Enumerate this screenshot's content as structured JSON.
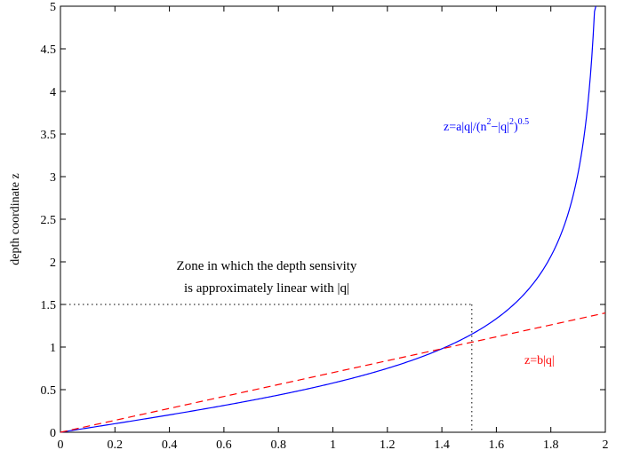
{
  "chart_data": {
    "type": "line",
    "ylabel": "depth coordinate z",
    "xlabel": "",
    "xlim": [
      0,
      2
    ],
    "ylim": [
      0,
      5
    ],
    "x_ticks": [
      "0",
      "0.2",
      "0.4",
      "0.6",
      "0.8",
      "1",
      "1.2",
      "1.4",
      "1.6",
      "1.8",
      "2"
    ],
    "y_ticks": [
      "0",
      "0.5",
      "1",
      "1.5",
      "2",
      "2.5",
      "3",
      "3.5",
      "4",
      "4.5",
      "5"
    ],
    "grid": false,
    "series": [
      {
        "label_parts": [
          "z=a|q|/(n",
          "2",
          "−|q|",
          "2",
          ")",
          "0.5"
        ],
        "color": "#0000ff",
        "style": "solid",
        "formula": "a*x/sqrt(n^2-x^2)",
        "params": {
          "a": 1.0,
          "n": 2.0
        },
        "x_end": 1.98
      },
      {
        "label": "z=b|q|",
        "color": "#ff0000",
        "style": "dashed",
        "formula": "b*x",
        "params": {
          "b": 0.7
        },
        "x_end": 2.0
      }
    ],
    "annotations": {
      "zone_line1": "Zone in which the depth sensivity",
      "zone_line2": "is approximately linear with |q|",
      "zone_x": 1.51,
      "zone_y": 1.5,
      "zone_line_style": "dotted"
    }
  }
}
